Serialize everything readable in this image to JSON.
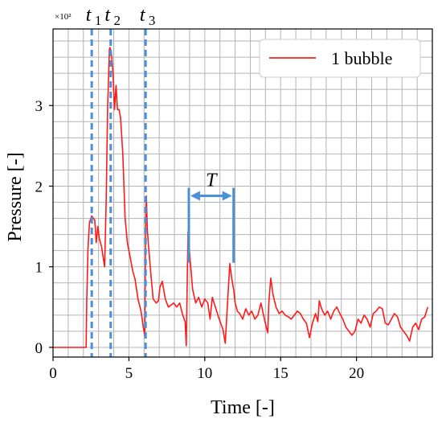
{
  "chart_data": {
    "type": "line",
    "xlabel": "Time [-]",
    "ylabel": "Pressure [-]",
    "xlim": [
      0,
      25
    ],
    "ylim": [
      -0.12,
      3.95
    ],
    "x_ticks": [
      0,
      5,
      10,
      15,
      20
    ],
    "y_ticks": [
      0,
      1,
      2,
      3
    ],
    "x_tick_labels": [
      "0",
      "5",
      "10",
      "15",
      "20"
    ],
    "y_tick_labels": [
      "0",
      "1",
      "2",
      "3"
    ],
    "y_scale_label": "×10²",
    "grid": true,
    "grid_minor_step": 1,
    "legend": {
      "position": "top-right",
      "label": "1 bubble"
    },
    "colors": {
      "series": "#ff1a1a",
      "markers": "#4a90d9",
      "grid": "#b3b3b3"
    },
    "series": [
      {
        "name": "1 bubble",
        "x": [
          0,
          2.18,
          2.22,
          2.3,
          2.4,
          2.55,
          2.75,
          2.85,
          2.95,
          3.05,
          3.2,
          3.3,
          3.4,
          3.5,
          3.6,
          3.72,
          3.75,
          3.85,
          3.95,
          4.05,
          4.15,
          4.25,
          4.35,
          4.45,
          4.6,
          4.75,
          4.9,
          5.1,
          5.25,
          5.4,
          5.6,
          5.8,
          5.95,
          6.05,
          6.1,
          6.15,
          6.22,
          6.3,
          6.45,
          6.6,
          6.8,
          6.95,
          7.05,
          7.2,
          7.4,
          7.6,
          7.75,
          7.95,
          8.15,
          8.35,
          8.55,
          8.7,
          8.78,
          8.85,
          8.9,
          9.05,
          9.2,
          9.4,
          9.6,
          9.8,
          10.0,
          10.2,
          10.35,
          10.5,
          10.7,
          10.9,
          11.05,
          11.2,
          11.35,
          11.5,
          11.65,
          11.78,
          11.85,
          11.92,
          12.0,
          12.15,
          12.3,
          12.5,
          12.7,
          12.9,
          13.1,
          13.3,
          13.5,
          13.7,
          13.9,
          14.05,
          14.15,
          14.22,
          14.35,
          14.5,
          14.7,
          14.9,
          15.1,
          15.3,
          15.5,
          15.7,
          15.9,
          16.1,
          16.3,
          16.5,
          16.7,
          16.9,
          17.1,
          17.3,
          17.45,
          17.55,
          17.7,
          17.9,
          18.1,
          18.3,
          18.5,
          18.7,
          18.9,
          19.1,
          19.3,
          19.5,
          19.7,
          19.9,
          20.1,
          20.3,
          20.5,
          20.7,
          20.9,
          21.1,
          21.3,
          21.5,
          21.7,
          21.9,
          22.1,
          22.3,
          22.5,
          22.7,
          22.9,
          23.1,
          23.3,
          23.5,
          23.7,
          23.9,
          24.1,
          24.3,
          24.5,
          24.7
        ],
        "values": [
          0.0,
          0.0,
          0.55,
          1.2,
          1.55,
          1.63,
          1.58,
          1.3,
          1.5,
          1.35,
          1.25,
          1.12,
          1.0,
          1.8,
          3.0,
          3.7,
          3.72,
          3.65,
          3.4,
          2.95,
          3.25,
          2.95,
          2.95,
          2.85,
          2.4,
          1.6,
          1.3,
          1.1,
          0.95,
          0.85,
          0.6,
          0.45,
          0.25,
          0.14,
          1.5,
          1.88,
          1.45,
          1.25,
          0.9,
          0.6,
          0.55,
          0.58,
          0.75,
          0.82,
          0.6,
          0.5,
          0.52,
          0.55,
          0.5,
          0.55,
          0.4,
          0.32,
          0.02,
          0.9,
          1.44,
          1.05,
          0.72,
          0.55,
          0.62,
          0.5,
          0.6,
          0.55,
          0.35,
          0.62,
          0.5,
          0.38,
          0.3,
          0.22,
          0.05,
          0.55,
          1.04,
          0.85,
          0.78,
          0.7,
          0.55,
          0.45,
          0.42,
          0.35,
          0.48,
          0.4,
          0.45,
          0.35,
          0.4,
          0.55,
          0.38,
          0.25,
          0.18,
          0.55,
          0.86,
          0.65,
          0.5,
          0.42,
          0.45,
          0.4,
          0.38,
          0.35,
          0.4,
          0.45,
          0.42,
          0.35,
          0.3,
          0.12,
          0.3,
          0.42,
          0.32,
          0.58,
          0.48,
          0.4,
          0.45,
          0.35,
          0.45,
          0.5,
          0.42,
          0.35,
          0.25,
          0.2,
          0.15,
          0.2,
          0.35,
          0.3,
          0.4,
          0.35,
          0.25,
          0.42,
          0.45,
          0.5,
          0.48,
          0.3,
          0.28,
          0.35,
          0.42,
          0.38,
          0.25,
          0.2,
          0.15,
          0.08,
          0.25,
          0.3,
          0.22,
          0.35,
          0.38,
          0.5
        ]
      }
    ],
    "markers": [
      {
        "label": "t",
        "sub": "1",
        "x": 2.55
      },
      {
        "label": "t",
        "sub": "2",
        "x": 3.8
      },
      {
        "label": "t",
        "sub": "3",
        "x": 6.1
      }
    ],
    "period": {
      "label": "T",
      "x_start": 8.95,
      "x_end": 11.9,
      "y": 1.88,
      "y_bottom": 1.05
    }
  }
}
